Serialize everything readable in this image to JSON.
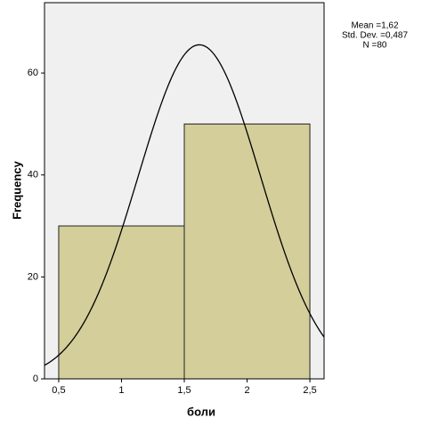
{
  "chart_data": {
    "type": "histogram",
    "x_label": "боли",
    "y_label": "Frequency",
    "bins": [
      0.5,
      1.5,
      2.5
    ],
    "values": [
      30,
      50
    ],
    "color": "#d3ce9a",
    "xlim": [
      0.387,
      2.613
    ],
    "ylim": [
      0,
      73.8
    ],
    "xticks": [
      {
        "value": 0.5,
        "label": "0,5"
      },
      1,
      {
        "value": 1.5,
        "label": "1,5"
      },
      2,
      {
        "value": 2.5,
        "label": "2,5"
      }
    ],
    "yticks": [
      0,
      20,
      40,
      60
    ],
    "normal_curve": {
      "mean": {
        "value": 1.62,
        "label": "Mean =1,62"
      },
      "std": {
        "value": 0.487,
        "label": "Std. Dev. =0,487"
      },
      "n": {
        "value": 80,
        "label": "N =80"
      }
    }
  }
}
